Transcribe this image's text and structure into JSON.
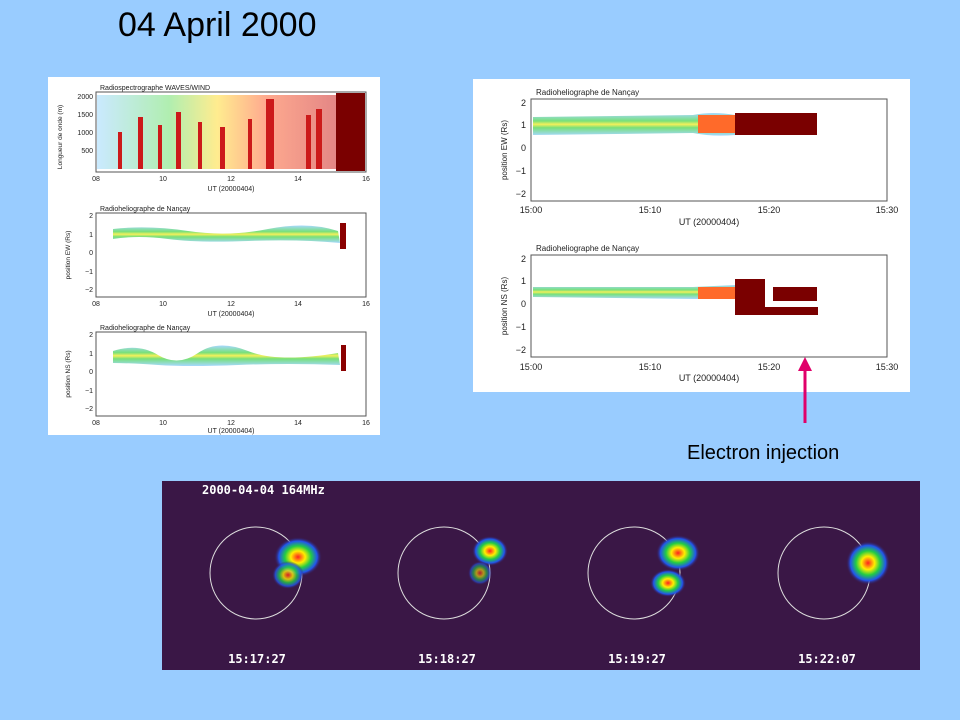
{
  "slide": {
    "title": "04 April 2000",
    "annotation": "Electron injection",
    "colors": {
      "background": "#99ccff",
      "arrow": "#e0006a"
    }
  },
  "left_panel": {
    "plots": [
      {
        "title": "Radiospectrographe WAVES/WIND",
        "ylabel": "Longueur de onde (m)",
        "yticks": [
          "2000",
          "1500",
          "1000",
          "500"
        ],
        "xticks": [
          "08",
          "10",
          "12",
          "14",
          "16"
        ],
        "xlabel": "UT (20000404)"
      },
      {
        "title": "Radioheliographe de Nançay",
        "ylabel": "position EW (Rs)",
        "yticks": [
          "2",
          "1",
          "0",
          "−1",
          "−2"
        ],
        "xticks": [
          "08",
          "10",
          "12",
          "14",
          "16"
        ],
        "xlabel": "UT (20000404)"
      },
      {
        "title": "Radioheliographe de Nançay",
        "ylabel": "position NS (Rs)",
        "yticks": [
          "2",
          "1",
          "0",
          "−1",
          "−2"
        ],
        "xticks": [
          "08",
          "10",
          "12",
          "14",
          "16"
        ],
        "xlabel": "UT (20000404)"
      }
    ]
  },
  "right_panel": {
    "plots": [
      {
        "title": "Radioheliographe de Nançay",
        "ylabel": "position EW (Rs)",
        "yticks": [
          "2",
          "1",
          "0",
          "−1",
          "−2"
        ],
        "xticks": [
          "15:00",
          "15:10",
          "15:20",
          "15:30"
        ],
        "xlabel": "UT (20000404)"
      },
      {
        "title": "Radioheliographe de Nançay",
        "ylabel": "position NS (Rs)",
        "yticks": [
          "2",
          "1",
          "0",
          "−1",
          "−2"
        ],
        "xticks": [
          "15:00",
          "15:10",
          "15:20",
          "15:30"
        ],
        "xlabel": "UT (20000404)"
      }
    ]
  },
  "images": {
    "header": "2000-04-04  164MHz",
    "frames": [
      {
        "time": "15:17:27"
      },
      {
        "time": "15:18:27"
      },
      {
        "time": "15:19:27"
      },
      {
        "time": "15:22:07"
      }
    ]
  }
}
